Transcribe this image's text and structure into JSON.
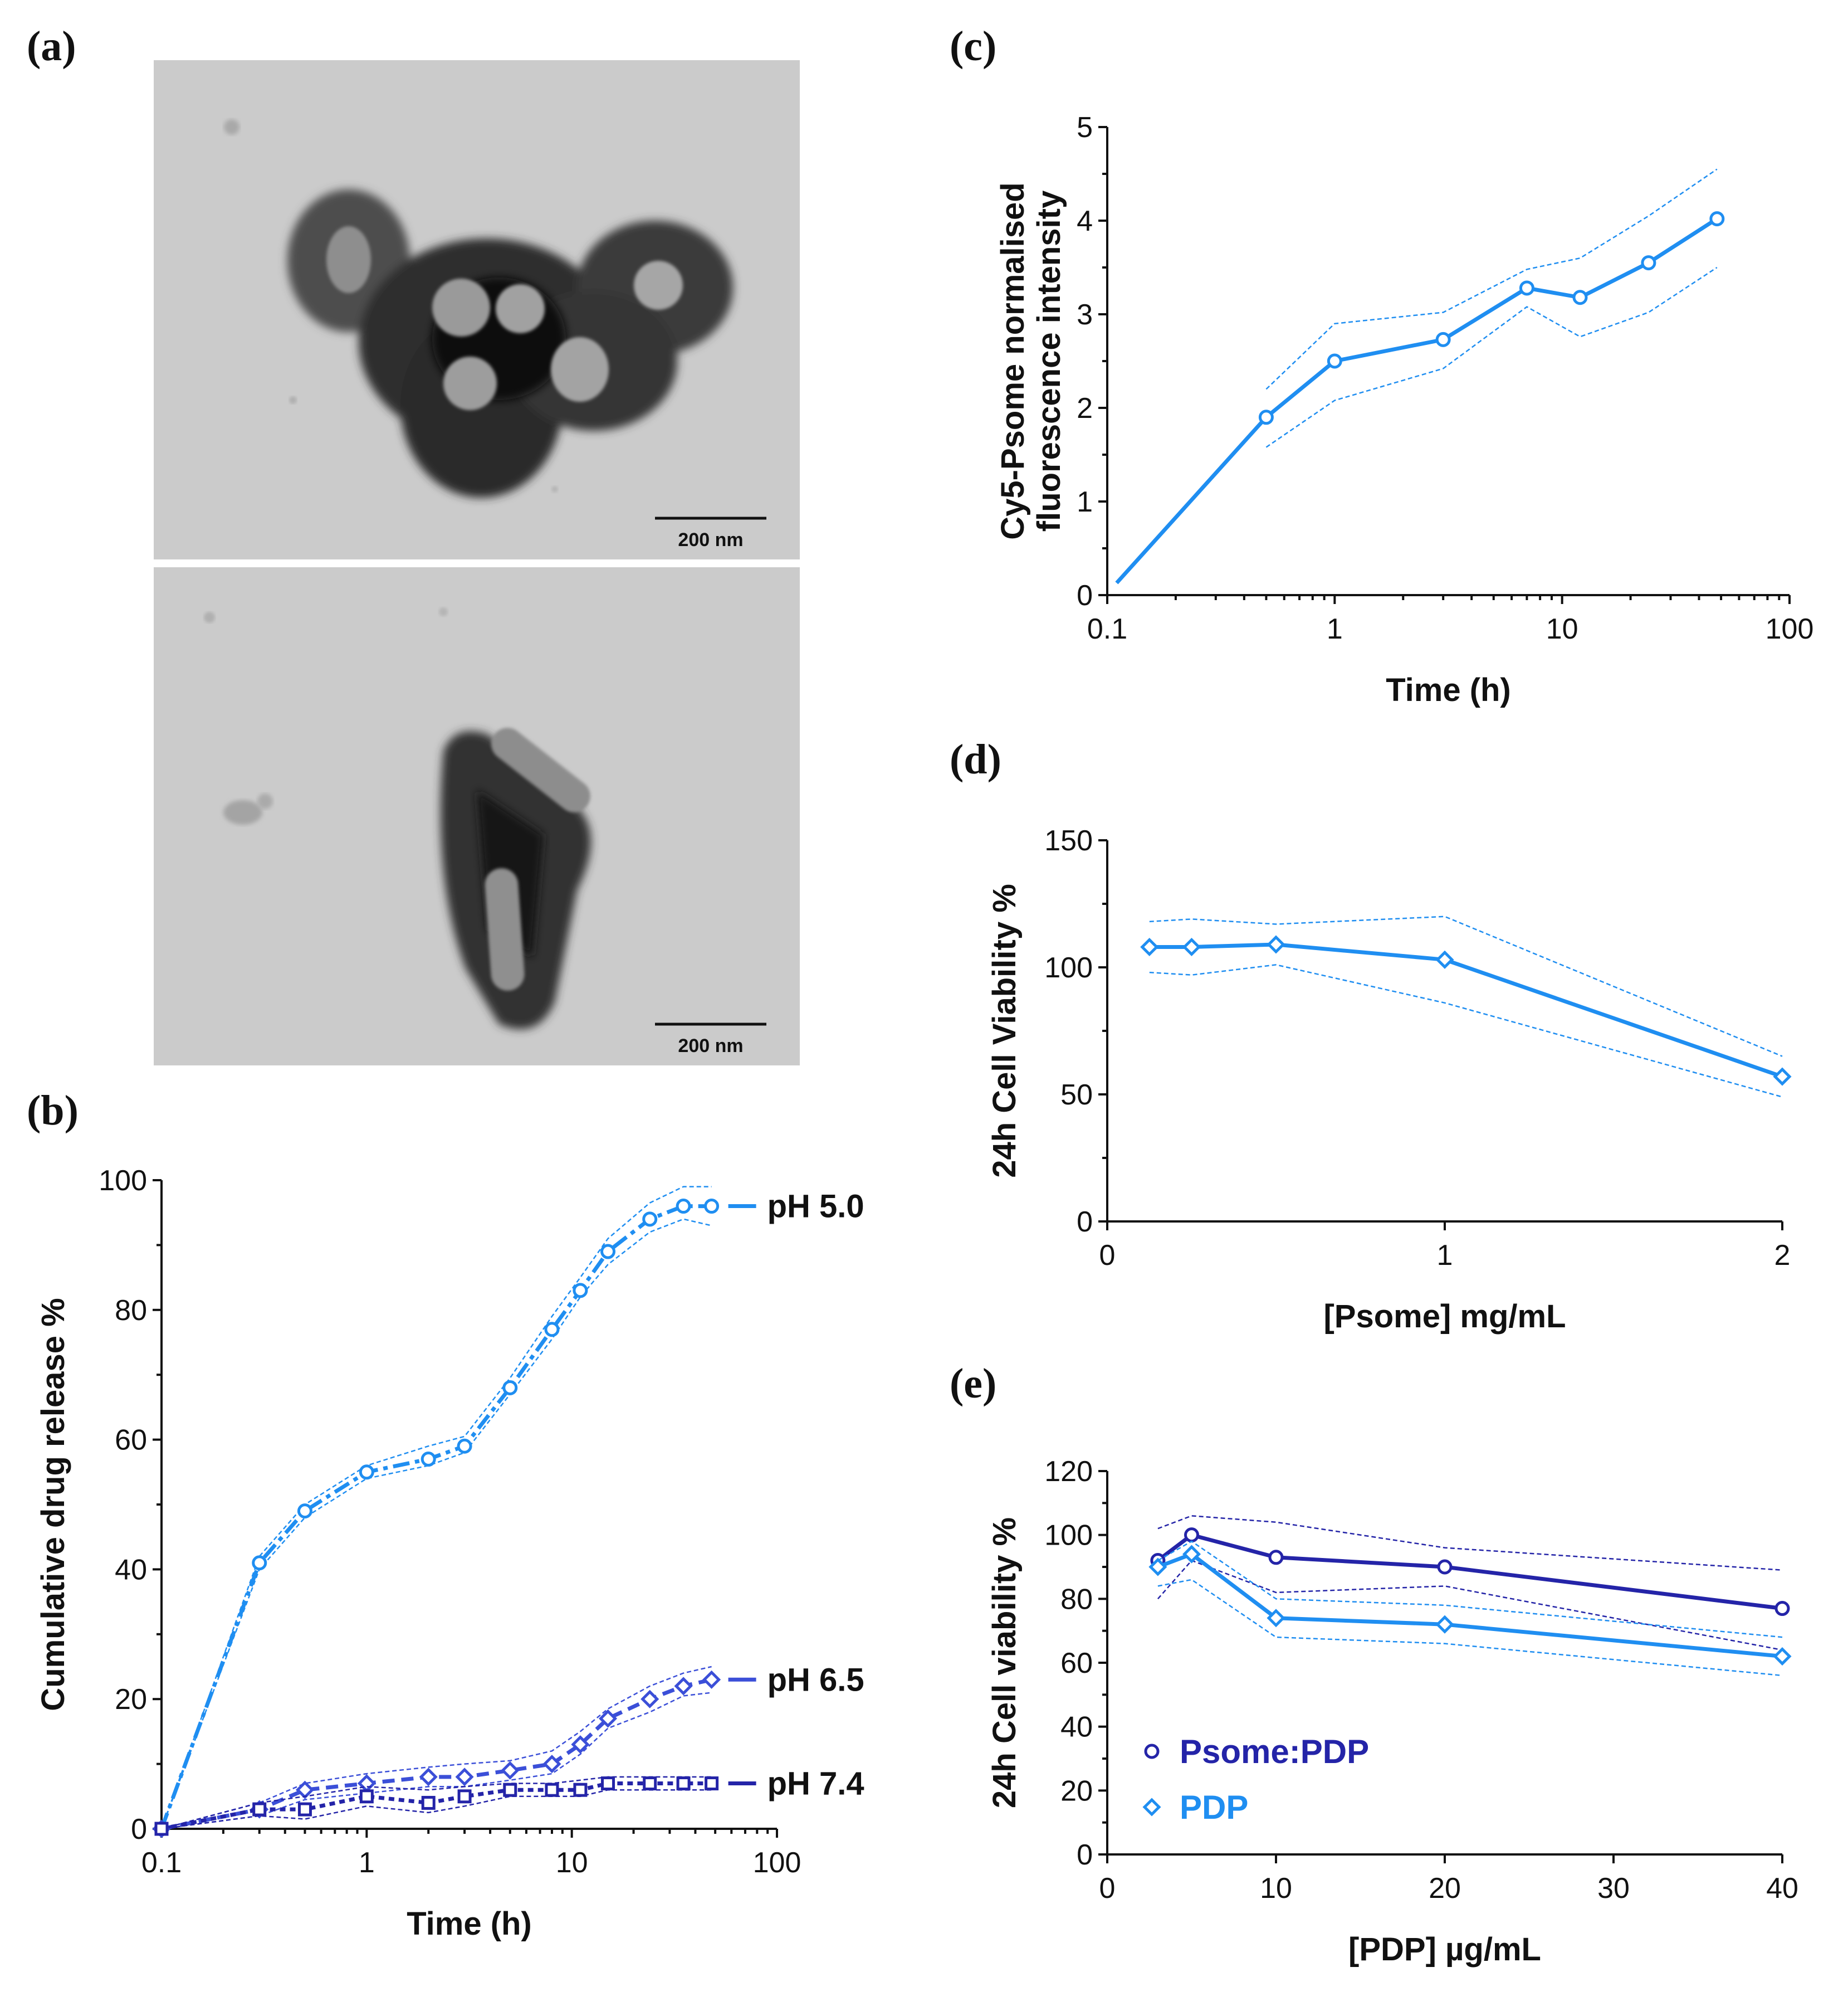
{
  "panels": {
    "a": "(a)",
    "b": "(b)",
    "c": "(c)",
    "d": "(d)",
    "e": "(e)"
  },
  "tem_images": [
    {
      "scalebar_label": "200 nm"
    },
    {
      "scalebar_label": "200 nm"
    }
  ],
  "colors": {
    "light_blue": "#1f8ef1",
    "dark_blue": "#2424a8",
    "mid_blue": "#3b4fd8"
  },
  "chart_data": [
    {
      "id": "b",
      "type": "line",
      "xscale": "log",
      "xlim": [
        0.1,
        100
      ],
      "ylim": [
        0,
        100
      ],
      "xticks": [
        0.1,
        1,
        10,
        100
      ],
      "xtick_labels": [
        "0.1",
        "1",
        "10",
        "100"
      ],
      "yticks": [
        0,
        20,
        40,
        60,
        80,
        100
      ],
      "ytick_labels": [
        "0",
        "20",
        "40",
        "60",
        "80",
        "100"
      ],
      "xlabel": "Time (h)",
      "ylabel": "Cumulative drug release %",
      "series": [
        {
          "name": "pH 5.0",
          "color": "#1f8ef1",
          "marker": "circle",
          "x": [
            0.1,
            0.3,
            0.5,
            1,
            2,
            3,
            5,
            8,
            11,
            15,
            24,
            35,
            48
          ],
          "y": [
            0,
            41,
            49,
            55,
            57,
            59,
            68,
            77,
            83,
            89,
            94,
            96,
            96
          ],
          "upper": [
            0,
            42,
            50,
            56,
            59,
            60.5,
            69.5,
            79,
            85,
            91,
            96.5,
            99,
            99
          ],
          "lower": [
            0,
            40,
            48,
            54,
            56,
            58,
            67,
            75.5,
            82,
            87,
            92,
            94,
            93
          ]
        },
        {
          "name": "pH 6.5",
          "color": "#3b4fd8",
          "marker": "diamond",
          "x": [
            0.1,
            0.3,
            0.5,
            1,
            2,
            3,
            5,
            8,
            11,
            15,
            24,
            35,
            48
          ],
          "y": [
            0,
            3,
            6,
            7,
            8,
            8,
            9,
            10,
            13,
            17,
            20,
            22,
            23
          ],
          "upper": [
            0,
            4,
            7,
            8.5,
            9.5,
            10,
            10.5,
            12,
            15,
            18.5,
            22,
            24,
            25
          ],
          "lower": [
            0,
            2,
            4.5,
            5.5,
            6.5,
            6.5,
            7.5,
            8.5,
            11.5,
            15.5,
            18,
            20.5,
            21
          ]
        },
        {
          "name": "pH 7.4",
          "color": "#2424a8",
          "marker": "square",
          "x": [
            0.1,
            0.3,
            0.5,
            1,
            2,
            3,
            5,
            8,
            11,
            15,
            24,
            35,
            48
          ],
          "y": [
            0,
            3,
            3,
            5,
            4,
            5,
            6,
            6,
            6,
            7,
            7,
            7,
            7
          ],
          "upper": [
            0,
            4,
            5,
            6.5,
            6,
            6.5,
            7,
            7,
            7.5,
            8,
            8,
            8,
            8
          ],
          "lower": [
            0,
            2,
            1.5,
            3.5,
            2.5,
            3.5,
            5,
            5,
            5,
            6,
            6,
            6,
            6
          ]
        }
      ]
    },
    {
      "id": "c",
      "type": "line",
      "xscale": "log",
      "xlim": [
        0.1,
        100
      ],
      "ylim": [
        0,
        5
      ],
      "xticks": [
        0.1,
        1,
        10,
        100
      ],
      "xtick_labels": [
        "0.1",
        "1",
        "10",
        "100"
      ],
      "yticks": [
        0,
        1,
        2,
        3,
        4,
        5
      ],
      "ytick_labels": [
        "0",
        "1",
        "2",
        "3",
        "4",
        "5"
      ],
      "xlabel": "Time (h)",
      "ylabel": "Cy5-Psome normalised",
      "ylabel2": "fluorescence intensity",
      "series": [
        {
          "name": "Cy5-Psome",
          "color": "#1f8ef1",
          "marker": "circle",
          "x": [
            0.11,
            0.5,
            1,
            3,
            7,
            12,
            24,
            48
          ],
          "y": [
            0.13,
            1.9,
            2.5,
            2.73,
            3.28,
            3.18,
            3.55,
            4.02
          ],
          "show_marker": [
            false,
            true,
            true,
            true,
            true,
            true,
            true,
            true
          ],
          "upper": [
            null,
            2.2,
            2.9,
            3.02,
            3.48,
            3.6,
            4.05,
            4.55
          ],
          "lower": [
            null,
            1.58,
            2.08,
            2.42,
            3.08,
            2.76,
            3.02,
            3.5
          ]
        }
      ]
    },
    {
      "id": "d",
      "type": "line",
      "xscale": "linear",
      "xlim": [
        0,
        2
      ],
      "ylim": [
        0,
        150
      ],
      "xticks": [
        0,
        1,
        2
      ],
      "xtick_labels": [
        "0",
        "1",
        "2"
      ],
      "yticks": [
        0,
        50,
        100,
        150
      ],
      "ytick_labels": [
        "0",
        "50",
        "100",
        "150"
      ],
      "xlabel": "[Psome] mg/mL",
      "ylabel": "24h Cell Viability %",
      "series": [
        {
          "name": "Psome",
          "color": "#1f8ef1",
          "marker": "diamond",
          "x": [
            0.125,
            0.25,
            0.5,
            1,
            2
          ],
          "y": [
            108,
            108,
            109,
            103,
            57
          ],
          "upper": [
            118,
            119,
            117,
            120,
            65
          ],
          "lower": [
            98,
            97,
            101,
            86,
            49
          ]
        }
      ]
    },
    {
      "id": "e",
      "type": "line",
      "xscale": "linear",
      "xlim": [
        0,
        40
      ],
      "ylim": [
        0,
        120
      ],
      "xticks": [
        0,
        10,
        20,
        30,
        40
      ],
      "xtick_labels": [
        "0",
        "10",
        "20",
        "30",
        "40"
      ],
      "yticks": [
        0,
        20,
        40,
        60,
        80,
        100,
        120
      ],
      "ytick_labels": [
        "0",
        "20",
        "40",
        "60",
        "80",
        "100",
        "120"
      ],
      "xlabel": "[PDP] µg/mL",
      "ylabel": "24h Cell viability %",
      "legend": [
        {
          "label": "Psome:PDP",
          "marker": "circle",
          "color": "#2424a8"
        },
        {
          "label": "PDP",
          "marker": "diamond",
          "color": "#1f8ef1"
        }
      ],
      "series": [
        {
          "name": "Psome:PDP",
          "color": "#2424a8",
          "marker": "circle",
          "x": [
            3,
            5,
            10,
            20,
            40
          ],
          "y": [
            92,
            100,
            93,
            90,
            77
          ],
          "upper": [
            102,
            106,
            104,
            96,
            89
          ],
          "lower": [
            80,
            92,
            82,
            84,
            64
          ]
        },
        {
          "name": "PDP",
          "color": "#1f8ef1",
          "marker": "diamond",
          "x": [
            3,
            5,
            10,
            20,
            40
          ],
          "y": [
            90,
            94,
            74,
            72,
            62
          ],
          "upper": [
            92,
            98,
            80,
            78,
            68
          ],
          "lower": [
            84,
            86,
            68,
            66,
            56
          ]
        }
      ]
    }
  ]
}
